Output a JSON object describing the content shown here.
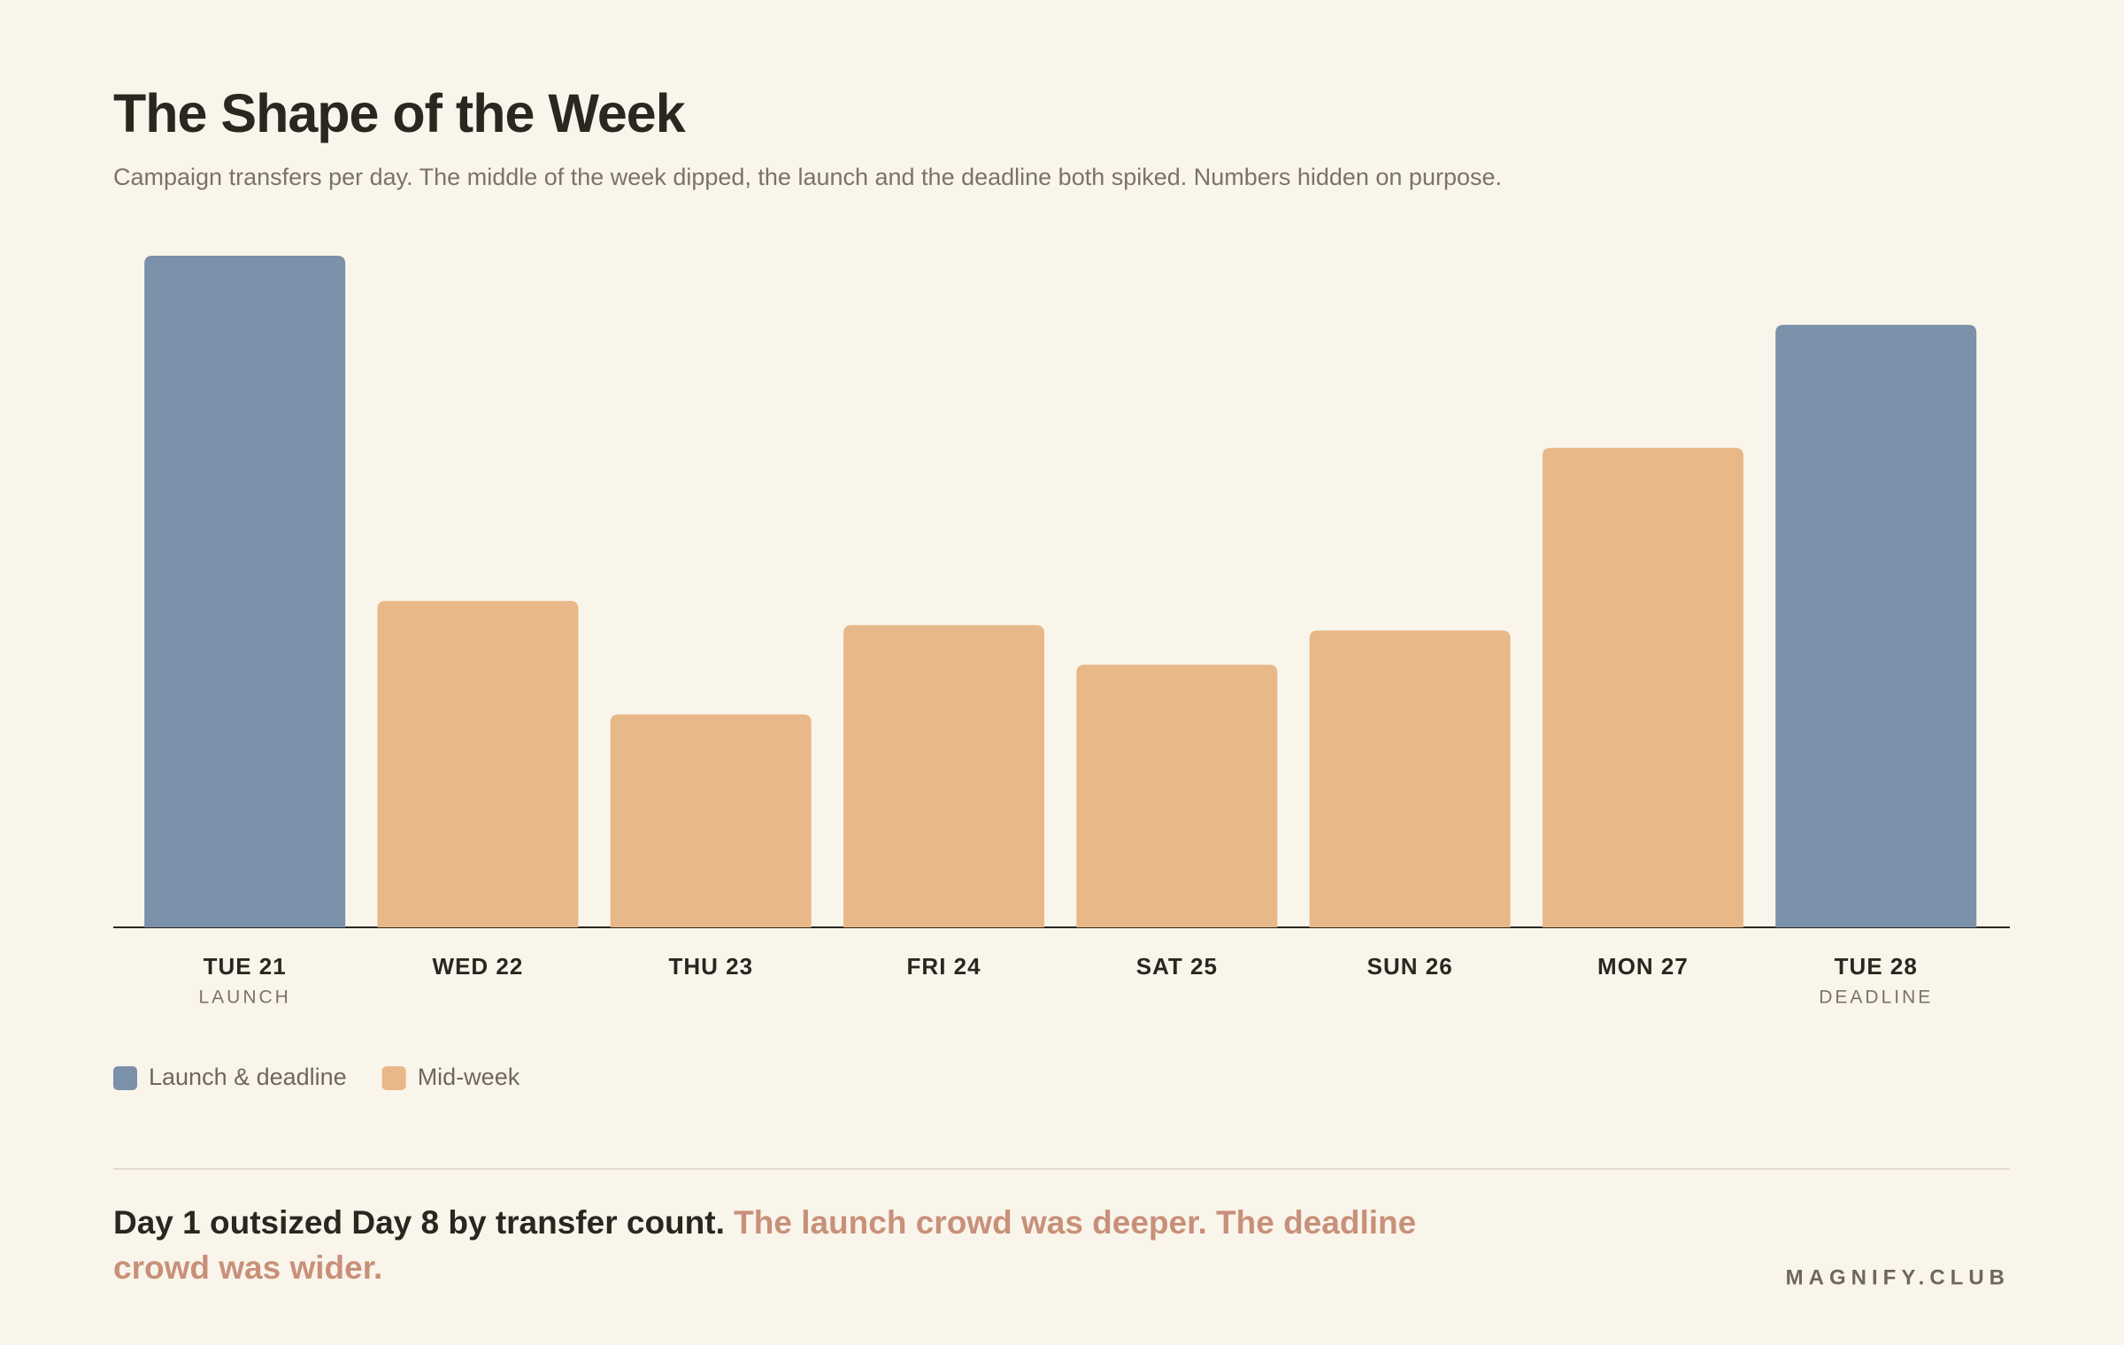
{
  "chart_data": {
    "type": "bar",
    "title": "The Shape of the Week",
    "subtitle": "Campaign transfers per day. The middle of the week dipped, the launch and the deadline both spiked. Numbers hidden on purpose.",
    "categories": [
      "TUE 21",
      "WED 22",
      "THU 23",
      "FRI 24",
      "SAT 25",
      "SUN 26",
      "MON 27",
      "TUE 28"
    ],
    "sublabels": [
      "LAUNCH",
      null,
      null,
      null,
      null,
      null,
      null,
      "DEADLINE"
    ],
    "series": [
      {
        "name": "Launch & deadline",
        "color": "#7b90a9",
        "values": [
          100,
          null,
          null,
          null,
          null,
          null,
          null,
          89.7
        ]
      },
      {
        "name": "Mid-week",
        "color": "#e8b889",
        "values": [
          null,
          48.6,
          31.7,
          45,
          39.1,
          44.2,
          71.4,
          null
        ]
      }
    ],
    "ylim": [
      0,
      100
    ],
    "takeaway": {
      "lead": "Day 1 outsized Day 8 by transfer count.",
      "accent": "The launch crowd was deeper. The deadline crowd was wider."
    },
    "brand": "MAGNIFY.CLUB"
  }
}
